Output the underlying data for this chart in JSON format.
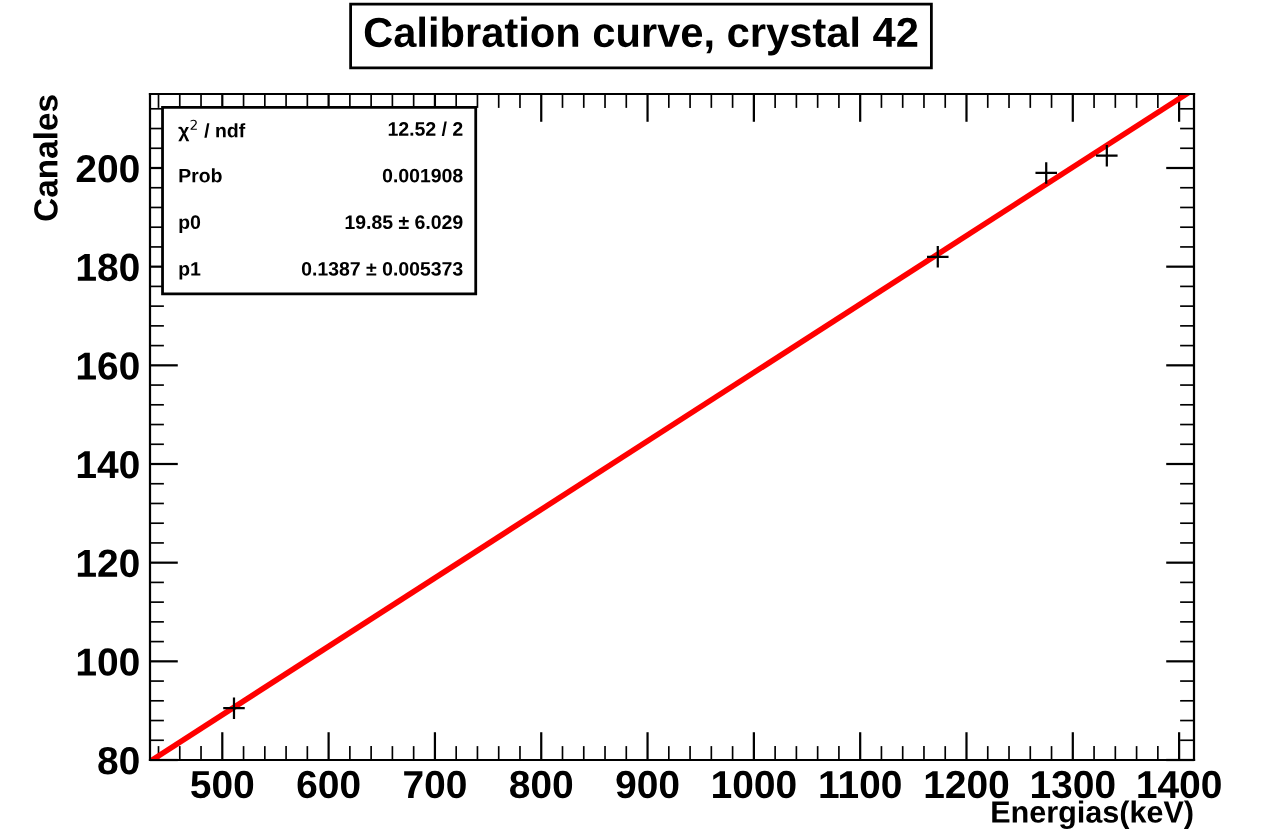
{
  "chart_data": {
    "type": "scatter",
    "title": "Calibration curve, crystal 42",
    "xlabel": "Energias(keV)",
    "ylabel": "Canales",
    "xlim": [
      432,
      1414
    ],
    "xticks": [
      500,
      600,
      700,
      800,
      900,
      1000,
      1100,
      1200,
      1300,
      1400
    ],
    "ylim": [
      80,
      215
    ],
    "yticks": [
      80,
      100,
      120,
      140,
      160,
      180,
      200
    ],
    "grid": false,
    "legend": false,
    "series": [
      {
        "marker": "cross",
        "color": "#000000",
        "x": [
          511,
          1173,
          1275,
          1332
        ],
        "values": [
          90.5,
          182,
          199,
          202.5
        ]
      },
      {
        "type": "line",
        "marker": "none",
        "color": "#ff0000",
        "x": [
          434,
          1407
        ],
        "values": [
          80.0,
          215.0
        ]
      }
    ],
    "annotations": [
      "χ$^{2}$ / ndf",
      "12.52 / 2",
      "Prob",
      "0.001908",
      "p0",
      "19.85 ± 6.029",
      "p1",
      "0.1387 ± 0.005373"
    ]
  }
}
